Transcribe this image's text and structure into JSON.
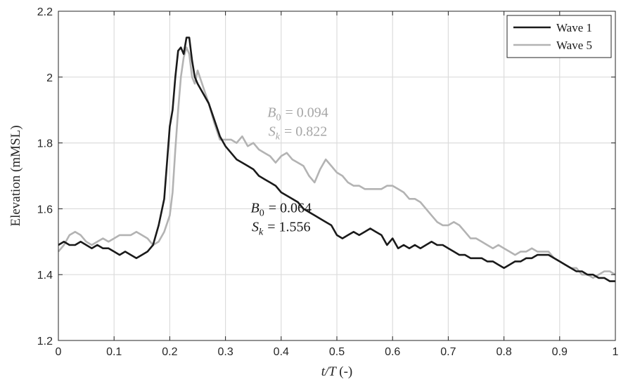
{
  "chart_data": {
    "type": "line",
    "xlabel": "t/T (-)",
    "ylabel": "Elevation (mMSL)",
    "xlim": [
      0,
      1
    ],
    "ylim": [
      1.2,
      2.2
    ],
    "xticks": [
      "0",
      "0.1",
      "0.2",
      "0.3",
      "0.4",
      "0.5",
      "0.6",
      "0.7",
      "0.8",
      "0.9",
      "1"
    ],
    "yticks": [
      "1.2",
      "1.4",
      "1.6",
      "1.8",
      "2",
      "2.2"
    ],
    "grid": true,
    "legend": "top-right",
    "series": [
      {
        "name": "Wave 1",
        "color": "#1a1a1a",
        "x": [
          0,
          0.01,
          0.02,
          0.03,
          0.04,
          0.05,
          0.06,
          0.07,
          0.08,
          0.09,
          0.1,
          0.11,
          0.12,
          0.13,
          0.14,
          0.15,
          0.16,
          0.17,
          0.18,
          0.19,
          0.2,
          0.205,
          0.21,
          0.215,
          0.22,
          0.225,
          0.23,
          0.235,
          0.24,
          0.245,
          0.25,
          0.26,
          0.27,
          0.28,
          0.29,
          0.3,
          0.31,
          0.32,
          0.33,
          0.34,
          0.35,
          0.36,
          0.37,
          0.38,
          0.39,
          0.4,
          0.41,
          0.42,
          0.43,
          0.44,
          0.45,
          0.46,
          0.47,
          0.48,
          0.49,
          0.5,
          0.51,
          0.52,
          0.53,
          0.54,
          0.55,
          0.56,
          0.57,
          0.58,
          0.59,
          0.6,
          0.61,
          0.62,
          0.63,
          0.64,
          0.65,
          0.66,
          0.67,
          0.68,
          0.69,
          0.7,
          0.71,
          0.72,
          0.73,
          0.74,
          0.75,
          0.76,
          0.77,
          0.78,
          0.79,
          0.8,
          0.81,
          0.82,
          0.83,
          0.84,
          0.85,
          0.86,
          0.87,
          0.88,
          0.89,
          0.9,
          0.91,
          0.92,
          0.93,
          0.94,
          0.95,
          0.96,
          0.97,
          0.98,
          0.99,
          1.0
        ],
        "y": [
          1.49,
          1.5,
          1.49,
          1.49,
          1.5,
          1.49,
          1.48,
          1.49,
          1.48,
          1.48,
          1.47,
          1.46,
          1.47,
          1.46,
          1.45,
          1.46,
          1.47,
          1.49,
          1.55,
          1.63,
          1.85,
          1.9,
          2.0,
          2.08,
          2.09,
          2.07,
          2.12,
          2.12,
          2.05,
          2.0,
          1.98,
          1.95,
          1.92,
          1.87,
          1.82,
          1.79,
          1.77,
          1.75,
          1.74,
          1.73,
          1.72,
          1.7,
          1.69,
          1.68,
          1.67,
          1.65,
          1.64,
          1.63,
          1.62,
          1.6,
          1.59,
          1.58,
          1.57,
          1.56,
          1.55,
          1.52,
          1.51,
          1.52,
          1.53,
          1.52,
          1.53,
          1.54,
          1.53,
          1.52,
          1.49,
          1.51,
          1.48,
          1.49,
          1.48,
          1.49,
          1.48,
          1.49,
          1.5,
          1.49,
          1.49,
          1.48,
          1.47,
          1.46,
          1.46,
          1.45,
          1.45,
          1.45,
          1.44,
          1.44,
          1.43,
          1.42,
          1.43,
          1.44,
          1.44,
          1.45,
          1.45,
          1.46,
          1.46,
          1.46,
          1.45,
          1.44,
          1.43,
          1.42,
          1.41,
          1.41,
          1.4,
          1.4,
          1.39,
          1.39,
          1.38,
          1.38
        ]
      },
      {
        "name": "Wave 5",
        "color": "#b3b3b3",
        "x": [
          0,
          0.01,
          0.02,
          0.03,
          0.04,
          0.05,
          0.06,
          0.07,
          0.08,
          0.09,
          0.1,
          0.11,
          0.12,
          0.13,
          0.14,
          0.15,
          0.16,
          0.17,
          0.18,
          0.19,
          0.2,
          0.205,
          0.21,
          0.215,
          0.22,
          0.225,
          0.23,
          0.235,
          0.24,
          0.245,
          0.25,
          0.26,
          0.27,
          0.28,
          0.29,
          0.3,
          0.31,
          0.32,
          0.33,
          0.34,
          0.35,
          0.36,
          0.37,
          0.38,
          0.39,
          0.4,
          0.41,
          0.42,
          0.43,
          0.44,
          0.45,
          0.46,
          0.47,
          0.48,
          0.49,
          0.5,
          0.51,
          0.52,
          0.53,
          0.54,
          0.55,
          0.56,
          0.57,
          0.58,
          0.59,
          0.6,
          0.61,
          0.62,
          0.63,
          0.64,
          0.65,
          0.66,
          0.67,
          0.68,
          0.69,
          0.7,
          0.71,
          0.72,
          0.73,
          0.74,
          0.75,
          0.76,
          0.77,
          0.78,
          0.79,
          0.8,
          0.81,
          0.82,
          0.83,
          0.84,
          0.85,
          0.86,
          0.87,
          0.88,
          0.89,
          0.9,
          0.91,
          0.92,
          0.93,
          0.94,
          0.95,
          0.96,
          0.97,
          0.98,
          0.99,
          1.0
        ],
        "y": [
          1.47,
          1.49,
          1.52,
          1.53,
          1.52,
          1.5,
          1.49,
          1.5,
          1.51,
          1.5,
          1.51,
          1.52,
          1.52,
          1.52,
          1.53,
          1.52,
          1.51,
          1.49,
          1.5,
          1.53,
          1.58,
          1.65,
          1.78,
          1.9,
          2.0,
          2.06,
          2.09,
          2.07,
          2.0,
          1.98,
          2.02,
          1.97,
          1.92,
          1.86,
          1.81,
          1.81,
          1.81,
          1.8,
          1.82,
          1.79,
          1.8,
          1.78,
          1.77,
          1.76,
          1.74,
          1.76,
          1.77,
          1.75,
          1.74,
          1.73,
          1.7,
          1.68,
          1.72,
          1.75,
          1.73,
          1.71,
          1.7,
          1.68,
          1.67,
          1.67,
          1.66,
          1.66,
          1.66,
          1.66,
          1.67,
          1.67,
          1.66,
          1.65,
          1.63,
          1.63,
          1.62,
          1.6,
          1.58,
          1.56,
          1.55,
          1.55,
          1.56,
          1.55,
          1.53,
          1.51,
          1.51,
          1.5,
          1.49,
          1.48,
          1.49,
          1.48,
          1.47,
          1.46,
          1.47,
          1.47,
          1.48,
          1.47,
          1.47,
          1.47,
          1.45,
          1.44,
          1.43,
          1.42,
          1.42,
          1.4,
          1.4,
          1.39,
          1.4,
          1.41,
          1.41,
          1.4
        ]
      }
    ],
    "annotations": [
      {
        "series": "Wave 5",
        "color": "#a6a6a6",
        "x": 0.43,
        "y": 1.865,
        "lines": [
          {
            "sym": "B",
            "sub": "0",
            "rhs": "= 0.094"
          },
          {
            "sym": "S",
            "sub": "k",
            "rhs": "= 0.822"
          }
        ]
      },
      {
        "series": "Wave 1",
        "color": "#1a1a1a",
        "x": 0.4,
        "y": 1.575,
        "lines": [
          {
            "sym": "B",
            "sub": "0",
            "rhs": "= 0.064"
          },
          {
            "sym": "S",
            "sub": "k",
            "rhs": "= 1.556"
          }
        ]
      }
    ]
  }
}
